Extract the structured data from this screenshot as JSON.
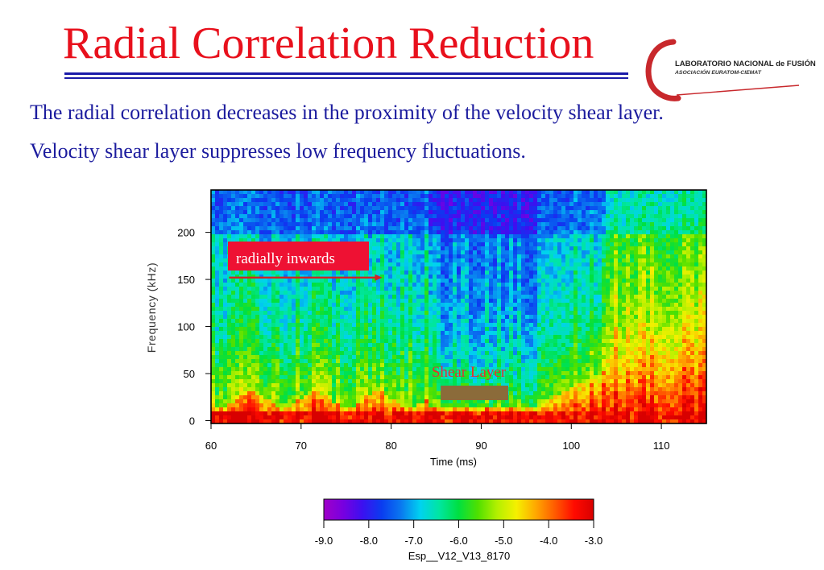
{
  "slide": {
    "title": "Radial Correlation Reduction",
    "bullets": [
      "The radial correlation decreases in the proximity of the velocity shear layer.",
      "Velocity shear layer suppresses low frequency fluctuations."
    ]
  },
  "logo": {
    "line1": "LABORATORIO NACIONAL de FUSIÓN",
    "line2": "ASOCIACIÓN EURATOM-CIEMAT"
  },
  "colors": {
    "title": "#e8101c",
    "bullets": "#1c1c9e",
    "label_box": "#ee1133",
    "arrow": "#d42020",
    "shear_bar": "#8b6b3a",
    "shear_text": "#e8302a"
  },
  "chart_data": {
    "type": "heatmap",
    "title": "",
    "xlabel": "Time (ms)",
    "ylabel": "Frequency (kHz)",
    "xlim": [
      60,
      115
    ],
    "ylim": [
      -3,
      245
    ],
    "x_ticks": [
      60,
      70,
      80,
      90,
      100,
      110
    ],
    "y_ticks": [
      0,
      50,
      100,
      150,
      200
    ],
    "colorbar": {
      "label": "Esp__V12_V13_8170",
      "range": [
        -9.0,
        -3.0
      ],
      "ticks": [
        "-9.0",
        "-8.0",
        "-7.0",
        "-6.0",
        "-5.0",
        "-4.0",
        "-3.0"
      ],
      "colors": [
        "#a000c8",
        "#7800e0",
        "#3c10f0",
        "#0a3cf0",
        "#0a78f0",
        "#00d2f0",
        "#00e6a0",
        "#00e040",
        "#50e000",
        "#b4f000",
        "#f5f000",
        "#ffa800",
        "#ff5a00",
        "#ff0a00",
        "#d80000"
      ]
    },
    "annotations": [
      {
        "text": "radially inwards",
        "type": "label_with_arrow",
        "arrow_from_time": 62,
        "arrow_to_time": 79,
        "arrow_freq": 152
      },
      {
        "text": "Shear Layer",
        "type": "bar",
        "from_time": 85.5,
        "to_time": 93
      }
    ]
  }
}
